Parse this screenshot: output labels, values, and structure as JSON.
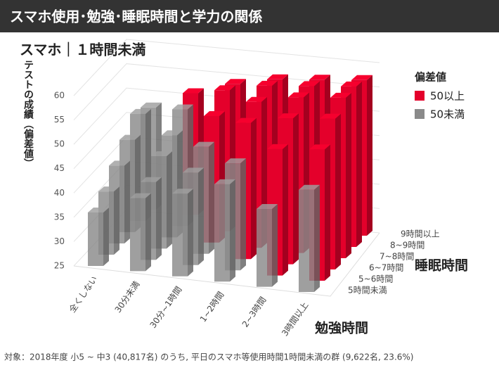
{
  "chart_data": {
    "type": "bar3d",
    "header": "スマホ使用･勉強･睡眠時間と学力の関係",
    "title": "スマホ｜１時間未満",
    "y_label": "テストの成績（偏差値）",
    "x_label": "勉強時間",
    "z_label": "睡眠時間",
    "note": "対象：2018年度 小5 ~ 中3 (40,817名) のうち, 平日のスマホ等使用時間1時間未満の群 (9,622名, 23.6%)",
    "categories": [
      "全くしない",
      "30分未満",
      "30分~1時間",
      "1~2時間",
      "2~3時間",
      "3時間以上"
    ],
    "series": [
      {
        "name": "5時間未満",
        "values": [
          36,
          40,
          42,
          45,
          41,
          46
        ]
      },
      {
        "name": "5~6時間",
        "values": [
          38,
          41,
          44,
          47,
          51,
          52
        ]
      },
      {
        "name": "6~7時間",
        "values": [
          41,
          44,
          47,
          53,
          55,
          56
        ]
      },
      {
        "name": "7~8時間",
        "values": [
          44,
          46,
          51,
          55,
          57,
          58
        ]
      },
      {
        "name": "8~9時間",
        "values": [
          47,
          49,
          54,
          56,
          57,
          58
        ]
      },
      {
        "name": "9時間以上",
        "values": [
          46,
          50,
          53,
          55,
          56,
          57
        ]
      }
    ],
    "color_threshold": 50,
    "legend": {
      "title": "偏差値",
      "items": [
        {
          "label": "50以上",
          "color": "#e4002b"
        },
        {
          "label": "50未満",
          "color": "#8a8a8a"
        }
      ]
    },
    "ylim": [
      25,
      60
    ],
    "yticks": [
      25,
      30,
      35,
      40,
      45,
      50,
      55,
      60
    ]
  }
}
